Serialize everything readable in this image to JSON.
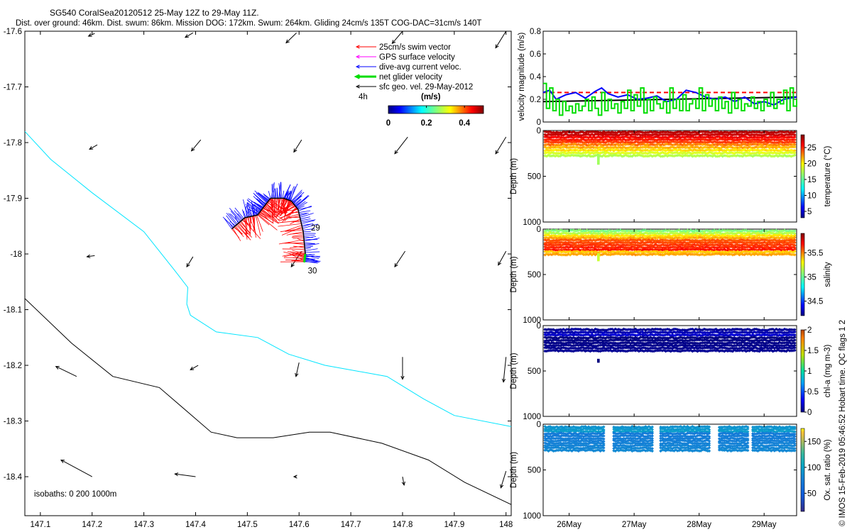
{
  "header": {
    "title": "SG540 CoralSea20120512 25-May 12Z to 29-May 11Z.",
    "subtitle": "Dist. over ground: 46km. Dist. swum: 86km. Mission DOG: 172km. Swum: 264km. Gliding 24cm/s 135T COG-DAC=31cm/s 140T"
  },
  "footer": {
    "credit": "© IMOS 15-Feb-2019 05:46:52 Hobart time. QC flags 1  2"
  },
  "colors": {
    "swim": "#ff0000",
    "gps": "#ff00ff",
    "dac": "#0000ff",
    "net": "#00dd00",
    "sfc": "#000000",
    "iso200": "#00e5ff",
    "iso1000": "#000000"
  },
  "chart_data": [
    {
      "type": "scatter",
      "name": "track-map",
      "xlim": [
        147.07,
        148.01
      ],
      "ylim": [
        -18.47,
        -17.6
      ],
      "xticks": [
        147.1,
        147.2,
        147.3,
        147.4,
        147.5,
        147.6,
        147.7,
        147.8,
        147.9,
        148
      ],
      "yticks": [
        -17.6,
        -17.7,
        -17.8,
        -17.9,
        -18,
        -18.1,
        -18.2,
        -18.3,
        -18.4
      ],
      "xtick_labels": [
        "147.1",
        "147.2",
        "147.3",
        "147.4",
        "147.5",
        "147.6",
        "147.7",
        "147.8",
        "147.9",
        "148"
      ],
      "ytick_labels": [
        "-17.6",
        "-17.7",
        "-17.8",
        "-17.9",
        "-18",
        "-18.1",
        "-18.2",
        "-18.3",
        "-18.4"
      ],
      "legend": {
        "placement": "top-right",
        "entries": [
          {
            "label": "25cm/s swim vector",
            "color": "#ff0000",
            "width": 1
          },
          {
            "label": "GPS surface velocity",
            "color": "#ff00ff",
            "width": 1
          },
          {
            "label": "dive-avg current veloc.",
            "color": "#0000ff",
            "width": 1
          },
          {
            "label": "net glider velocity",
            "color": "#00dd00",
            "width": 3
          },
          {
            "label": "sfc geo. vel. 29-May-2012",
            "color": "#000000",
            "width": 1
          }
        ],
        "scale_label": "4h",
        "colorbar": {
          "label": "(m/s)",
          "ticks": [
            0,
            0.2,
            0.4
          ],
          "tick_labels": [
            "0",
            "0.2",
            "0.4"
          ],
          "range": [
            0,
            0.5
          ]
        }
      },
      "isobath_label": "isobaths: 0   200  1000m",
      "isobaths": [
        {
          "depth": 200,
          "color": "#00e5ff",
          "points": [
            [
              147.07,
              -17.78
            ],
            [
              147.12,
              -17.83
            ],
            [
              147.2,
              -17.89
            ],
            [
              147.3,
              -17.96
            ],
            [
              147.36,
              -18.03
            ],
            [
              147.385,
              -18.06
            ],
            [
              147.383,
              -18.09
            ],
            [
              147.39,
              -18.11
            ],
            [
              147.44,
              -18.14
            ],
            [
              147.52,
              -18.15
            ],
            [
              147.58,
              -18.18
            ],
            [
              147.65,
              -18.2
            ],
            [
              147.77,
              -18.22
            ],
            [
              147.84,
              -18.26
            ],
            [
              147.9,
              -18.29
            ],
            [
              148.01,
              -18.31
            ]
          ]
        },
        {
          "depth": 1000,
          "color": "#000000",
          "points": [
            [
              147.07,
              -18.08
            ],
            [
              147.16,
              -18.16
            ],
            [
              147.24,
              -18.22
            ],
            [
              147.33,
              -18.24
            ],
            [
              147.43,
              -18.32
            ],
            [
              147.48,
              -18.33
            ],
            [
              147.55,
              -18.33
            ],
            [
              147.62,
              -18.32
            ],
            [
              147.66,
              -18.32
            ],
            [
              147.76,
              -18.34
            ],
            [
              147.85,
              -18.37
            ],
            [
              147.92,
              -18.41
            ],
            [
              148.01,
              -18.45
            ]
          ]
        }
      ],
      "track": [
        [
          147.47,
          -17.955
        ],
        [
          147.495,
          -17.935
        ],
        [
          147.52,
          -17.93
        ],
        [
          147.532,
          -17.915
        ],
        [
          147.545,
          -17.9
        ],
        [
          147.57,
          -17.9
        ],
        [
          147.585,
          -17.905
        ],
        [
          147.598,
          -17.92
        ],
        [
          147.608,
          -17.96
        ],
        [
          147.612,
          -18.0
        ],
        [
          147.61,
          -18.015
        ]
      ],
      "track_labels": [
        {
          "text": "29",
          "x": 147.623,
          "y": -17.958
        },
        {
          "text": "30",
          "x": 147.617,
          "y": -18.035
        }
      ],
      "sfc_vectors": [
        {
          "x": 147.205,
          "y": -17.604,
          "u": -0.012,
          "v": -0.005
        },
        {
          "x": 147.395,
          "y": -17.603,
          "u": -0.015,
          "v": -0.008
        },
        {
          "x": 147.595,
          "y": -17.603,
          "u": -0.02,
          "v": -0.018
        },
        {
          "x": 147.8,
          "y": -17.6,
          "u": -0.02,
          "v": -0.022
        },
        {
          "x": 148.0,
          "y": -17.6,
          "u": -0.02,
          "v": -0.03
        },
        {
          "x": 147.21,
          "y": -17.804,
          "u": -0.015,
          "v": -0.008
        },
        {
          "x": 147.41,
          "y": -17.795,
          "u": -0.018,
          "v": -0.02
        },
        {
          "x": 147.605,
          "y": -17.795,
          "u": -0.015,
          "v": -0.022
        },
        {
          "x": 147.81,
          "y": -17.79,
          "u": -0.025,
          "v": -0.03
        },
        {
          "x": 148.0,
          "y": -17.79,
          "u": -0.02,
          "v": -0.03
        },
        {
          "x": 147.205,
          "y": -18.003,
          "u": -0.015,
          "v": -0.002
        },
        {
          "x": 147.395,
          "y": -18.005,
          "u": -0.012,
          "v": -0.018
        },
        {
          "x": 147.605,
          "y": -17.995,
          "u": -0.02,
          "v": -0.028
        },
        {
          "x": 147.805,
          "y": -17.995,
          "u": -0.02,
          "v": -0.028
        },
        {
          "x": 148.0,
          "y": -17.995,
          "u": -0.015,
          "v": -0.025
        },
        {
          "x": 147.17,
          "y": -18.22,
          "u": -0.04,
          "v": 0.018
        },
        {
          "x": 147.405,
          "y": -18.2,
          "u": -0.015,
          "v": -0.008
        },
        {
          "x": 147.6,
          "y": -18.195,
          "u": -0.006,
          "v": -0.025
        },
        {
          "x": 147.8,
          "y": -18.185,
          "u": 0.0,
          "v": -0.04
        },
        {
          "x": 148.0,
          "y": -18.185,
          "u": -0.005,
          "v": -0.045
        },
        {
          "x": 147.2,
          "y": -18.4,
          "u": -0.06,
          "v": 0.03
        },
        {
          "x": 147.4,
          "y": -18.4,
          "u": -0.04,
          "v": 0.005
        },
        {
          "x": 147.595,
          "y": -18.4,
          "u": -0.005,
          "v": 0.0
        },
        {
          "x": 147.8,
          "y": -18.4,
          "u": 0.003,
          "v": -0.015
        },
        {
          "x": 148.0,
          "y": -18.39,
          "u": -0.01,
          "v": -0.03
        }
      ]
    },
    {
      "type": "line",
      "name": "velocity-magnitude",
      "ylabel": "velocity magnitude (m/s)",
      "ylim": [
        0,
        0.8
      ],
      "xlim": [
        25.6,
        29.5
      ],
      "yticks": [
        0,
        0.2,
        0.4,
        0.6,
        0.8
      ],
      "ytick_labels": [
        "0",
        "0.2",
        "0.4",
        "0.6",
        "0.8"
      ],
      "series": [
        {
          "color": "#ff0000",
          "dash": true,
          "width": 2,
          "x": [
            25.6,
            29.5
          ],
          "y": [
            0.26,
            0.26
          ]
        },
        {
          "color": "#000000",
          "width": 2,
          "x": [
            25.6,
            29.5
          ],
          "y": [
            0.18,
            0.22
          ]
        },
        {
          "color": "#0000ff",
          "width": 2,
          "x": [
            25.6,
            25.7,
            25.8,
            25.95,
            26.1,
            26.25,
            26.4,
            26.5,
            26.6,
            26.75,
            26.9,
            27.05,
            27.2,
            27.35,
            27.5,
            27.65,
            27.8,
            27.95,
            28.1,
            28.25,
            28.4,
            28.55,
            28.7,
            28.85,
            29.0,
            29.15,
            29.3,
            29.5
          ],
          "y": [
            0.26,
            0.28,
            0.2,
            0.24,
            0.26,
            0.21,
            0.27,
            0.3,
            0.25,
            0.22,
            0.24,
            0.2,
            0.21,
            0.23,
            0.18,
            0.2,
            0.28,
            0.26,
            0.22,
            0.2,
            0.22,
            0.18,
            0.22,
            0.16,
            0.18,
            0.15,
            0.2,
            0.22
          ]
        },
        {
          "color": "#00dd00",
          "width": 2,
          "step": true,
          "x": [
            25.6,
            25.65,
            25.7,
            25.75,
            25.8,
            25.85,
            25.9,
            25.95,
            26.0,
            26.05,
            26.1,
            26.15,
            26.2,
            26.25,
            26.3,
            26.35,
            26.4,
            26.45,
            26.5,
            26.55,
            26.6,
            26.65,
            26.7,
            26.75,
            26.8,
            26.85,
            26.9,
            26.95,
            27.0,
            27.05,
            27.1,
            27.15,
            27.2,
            27.25,
            27.3,
            27.35,
            27.4,
            27.45,
            27.5,
            27.55,
            27.6,
            27.65,
            27.7,
            27.75,
            27.8,
            27.85,
            27.9,
            27.95,
            28.0,
            28.05,
            28.1,
            28.15,
            28.2,
            28.25,
            28.3,
            28.35,
            28.4,
            28.45,
            28.5,
            28.55,
            28.6,
            28.65,
            28.7,
            28.75,
            28.8,
            28.85,
            28.9,
            28.95,
            29.0,
            29.05,
            29.1,
            29.15,
            29.2,
            29.25,
            29.3,
            29.35,
            29.4,
            29.45,
            29.5
          ],
          "y": [
            0.34,
            0.12,
            0.3,
            0.1,
            0.2,
            0.06,
            0.18,
            0.1,
            0.14,
            0.08,
            0.16,
            0.1,
            0.14,
            0.2,
            0.1,
            0.22,
            0.12,
            0.06,
            0.26,
            0.1,
            0.2,
            0.12,
            0.16,
            0.08,
            0.18,
            0.12,
            0.28,
            0.1,
            0.24,
            0.14,
            0.3,
            0.08,
            0.2,
            0.1,
            0.22,
            0.16,
            0.12,
            0.18,
            0.08,
            0.3,
            0.12,
            0.2,
            0.1,
            0.24,
            0.1,
            0.16,
            0.2,
            0.12,
            0.3,
            0.1,
            0.24,
            0.14,
            0.2,
            0.1,
            0.22,
            0.12,
            0.18,
            0.08,
            0.26,
            0.12,
            0.2,
            0.1,
            0.16,
            0.14,
            0.22,
            0.12,
            0.18,
            0.1,
            0.2,
            0.14,
            0.26,
            0.12,
            0.2,
            0.16,
            0.28,
            0.1,
            0.3,
            0.14,
            0.2
          ]
        }
      ]
    },
    {
      "type": "scatter",
      "name": "temperature-section",
      "ylabel": "Depth (m)",
      "ylim": [
        0,
        1000
      ],
      "xlim": [
        25.6,
        29.5
      ],
      "yticks": [
        0,
        500,
        1000
      ],
      "ytick_labels": [
        "0",
        "500",
        "1000"
      ],
      "colorbar": {
        "label": "temperature (°C)",
        "range": [
          3,
          29
        ],
        "ticks": [
          5,
          10,
          15,
          20,
          25
        ],
        "tick_labels": [
          "5",
          "10",
          "15",
          "20",
          "25"
        ]
      },
      "bands": [
        {
          "z": [
            5,
            60
          ],
          "val": [
            27,
            28
          ]
        },
        {
          "z": [
            60,
            140
          ],
          "val": [
            24,
            27
          ]
        },
        {
          "z": [
            140,
            230
          ],
          "val": [
            20,
            24
          ]
        },
        {
          "z": [
            230,
            290
          ],
          "val": [
            17,
            20
          ]
        }
      ],
      "outlier": {
        "x": 26.45,
        "z": [
          270,
          360
        ],
        "val": 17
      }
    },
    {
      "type": "scatter",
      "name": "salinity-section",
      "ylabel": "Depth (m)",
      "ylim": [
        0,
        1000
      ],
      "xlim": [
        25.6,
        29.5
      ],
      "yticks": [
        0,
        500,
        1000
      ],
      "ytick_labels": [
        "0",
        "500",
        "1000"
      ],
      "colorbar": {
        "label": "salinity",
        "range": [
          34.2,
          35.9
        ],
        "ticks": [
          34.5,
          35,
          35.5
        ],
        "tick_labels": [
          "34.5",
          "35",
          "35.5"
        ]
      },
      "bands": [
        {
          "z": [
            5,
            60
          ],
          "val": [
            35.0,
            35.25
          ]
        },
        {
          "z": [
            60,
            110
          ],
          "val": [
            35.3,
            35.5
          ]
        },
        {
          "z": [
            110,
            240
          ],
          "val": [
            35.55,
            35.7
          ]
        },
        {
          "z": [
            240,
            290
          ],
          "val": [
            35.35,
            35.5
          ]
        }
      ],
      "outlier": {
        "x": 26.45,
        "z": [
          280,
          350
        ],
        "val": 35.2
      }
    },
    {
      "type": "scatter",
      "name": "chla-section",
      "ylabel": "Depth (m)",
      "ylim": [
        0,
        1000
      ],
      "xlim": [
        25.6,
        29.5
      ],
      "yticks": [
        0,
        500,
        1000
      ],
      "ytick_labels": [
        "0",
        "500",
        "1000"
      ],
      "colorbar": {
        "label": "chl-a (mg m-3)",
        "range": [
          0,
          2
        ],
        "ticks": [
          0,
          0.5,
          1,
          1.5,
          2
        ],
        "tick_labels": [
          "0",
          "0.5",
          "1",
          "1.5",
          "2"
        ]
      },
      "bands": [
        {
          "z": [
            30,
            120
          ],
          "val": [
            0.02,
            0.25
          ]
        },
        {
          "z": [
            120,
            290
          ],
          "val": [
            0.0,
            0.06
          ]
        }
      ],
      "outlier": {
        "x": 26.45,
        "z": [
          380,
          400
        ],
        "val": 0.0
      }
    },
    {
      "type": "scatter",
      "name": "oxygen-section",
      "ylabel": "Depth (m)",
      "ylim": [
        0,
        1000
      ],
      "xlim": [
        25.6,
        29.5
      ],
      "xticks": [
        26,
        27,
        28,
        29
      ],
      "xtick_labels": [
        "26May",
        "27May",
        "28May",
        "29May"
      ],
      "yticks": [
        0,
        500,
        1000
      ],
      "ytick_labels": [
        "0",
        "500",
        "1000"
      ],
      "colorbar": {
        "label": "Ox. sat. ratio (%)",
        "range": [
          15,
          175
        ],
        "ticks": [
          50,
          100,
          150
        ],
        "tick_labels": [
          "50",
          "100",
          "150"
        ]
      },
      "bands": [
        {
          "z": [
            20,
            90
          ],
          "val": [
            88,
            100
          ]
        },
        {
          "z": [
            90,
            300
          ],
          "val": [
            72,
            86
          ]
        }
      ],
      "gaps": [
        [
          26.55,
          26.68
        ],
        [
          27.28,
          27.4
        ],
        [
          28.18,
          28.3
        ],
        [
          28.75,
          28.8
        ]
      ]
    }
  ]
}
